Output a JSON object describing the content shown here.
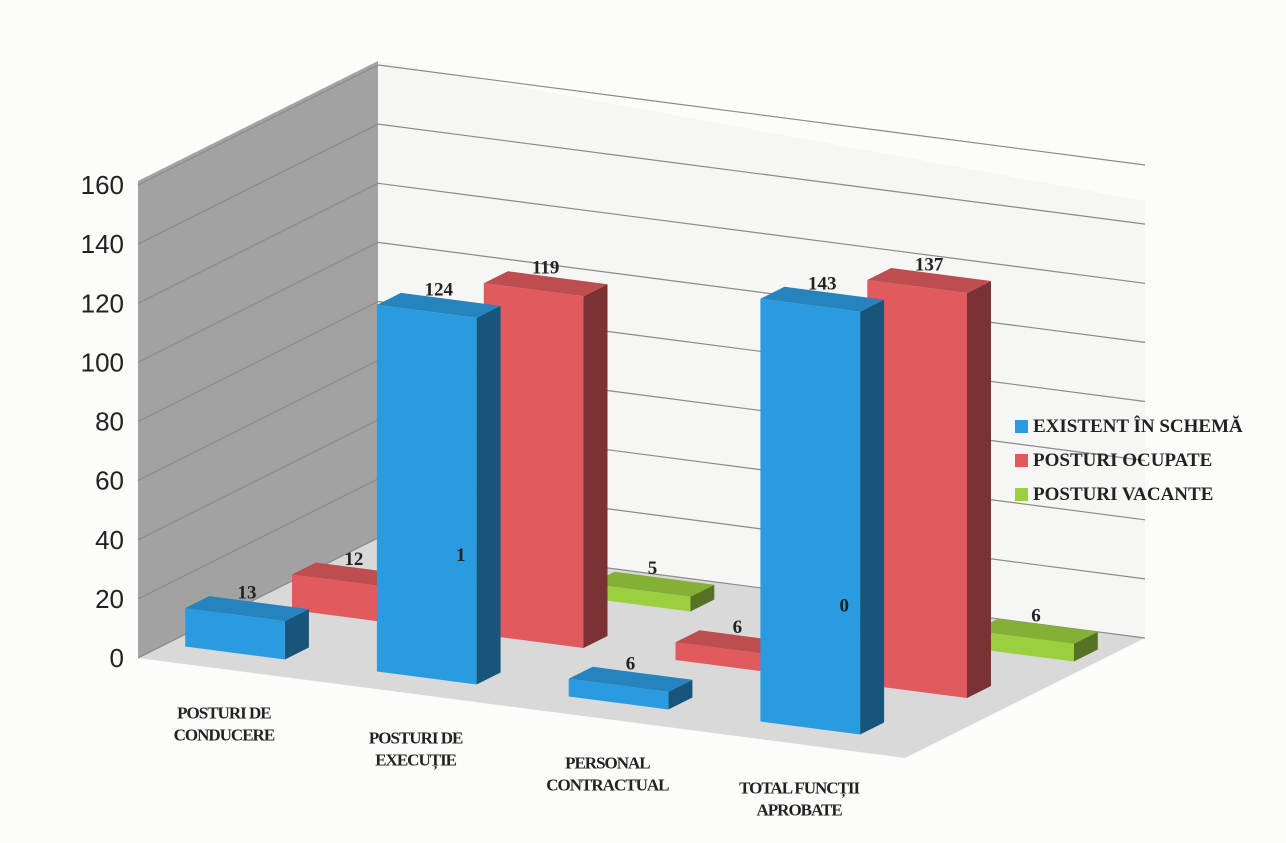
{
  "chart_data": {
    "type": "bar",
    "title": "",
    "xlabel": "",
    "ylabel": "",
    "ylim": [
      0,
      160
    ],
    "yticks": [
      "0",
      "20",
      "40",
      "60",
      "80",
      "100",
      "120",
      "140",
      "160"
    ],
    "grid": true,
    "legend_position": "right",
    "categories": [
      [
        "POSTURI DE",
        "CONDUCERE"
      ],
      [
        "POSTURI DE",
        "EXECUȚIE"
      ],
      [
        "PERSONAL",
        "CONTRACTUAL"
      ],
      [
        "TOTAL FUNCȚII",
        "APROBATE"
      ]
    ],
    "series": [
      {
        "name": "EXISTENT ÎN SCHEMĂ",
        "values": [
          13,
          124,
          6,
          143
        ],
        "color": "#2b9be0"
      },
      {
        "name": "POSTURI OCUPATE",
        "values": [
          12,
          119,
          6,
          137
        ],
        "color": "#e05a5e"
      },
      {
        "name": "POSTURI VACANTE",
        "values": [
          1,
          5,
          0,
          6
        ],
        "color": "#9ccf3f"
      }
    ]
  }
}
